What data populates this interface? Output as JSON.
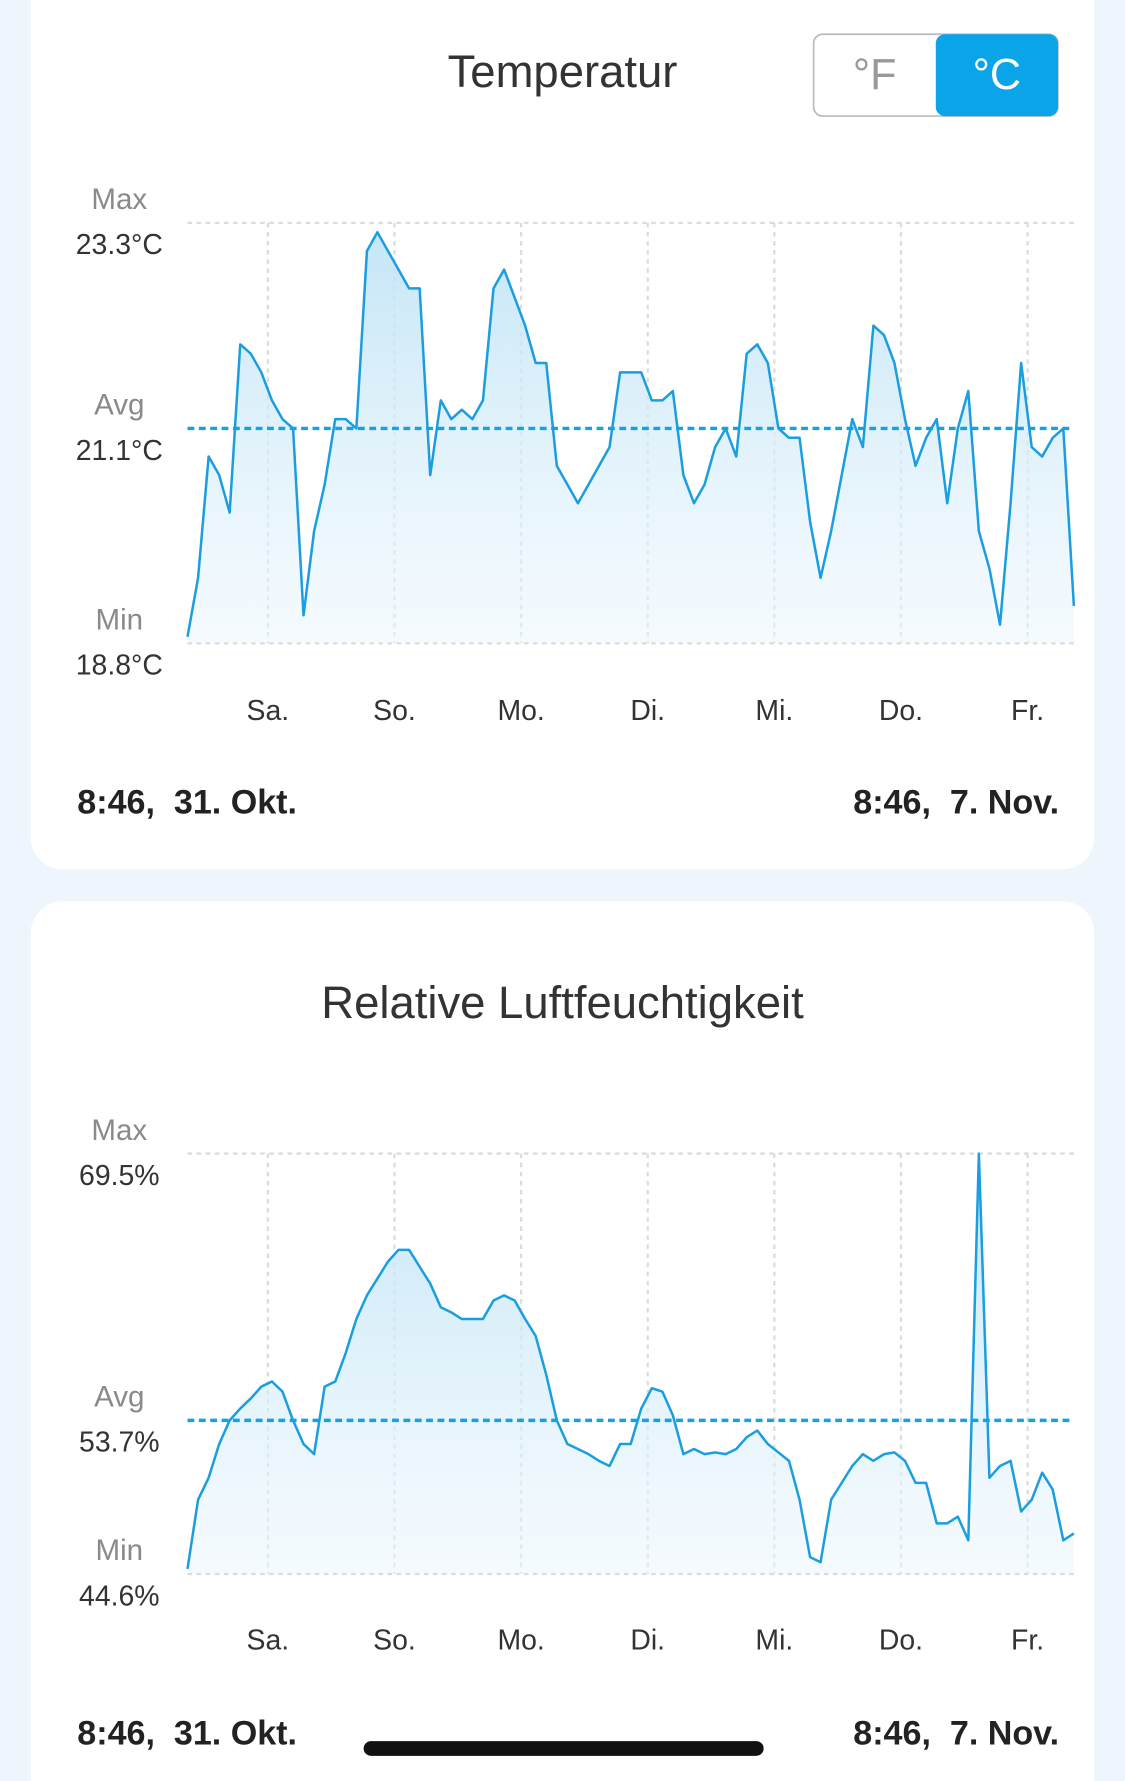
{
  "unit_toggle": {
    "options": [
      "°F",
      "°C"
    ],
    "selected": "°C"
  },
  "chart_data": [
    {
      "type": "line",
      "title": "Temperatur",
      "color": "#1a9ee0",
      "values": [
        18.87,
        19.5,
        20.8,
        20.6,
        20.2,
        22.0,
        21.9,
        21.7,
        21.4,
        21.2,
        21.1,
        19.1,
        20.0,
        20.5,
        21.2,
        21.2,
        21.1,
        23.0,
        23.2,
        23.0,
        22.8,
        22.6,
        22.6,
        20.6,
        21.4,
        21.2,
        21.3,
        21.2,
        21.4,
        22.6,
        22.8,
        22.5,
        22.2,
        21.8,
        21.8,
        20.7,
        20.5,
        20.3,
        20.5,
        20.7,
        20.9,
        21.7,
        21.7,
        21.7,
        21.4,
        21.4,
        21.5,
        20.6,
        20.3,
        20.5,
        20.9,
        21.1,
        20.8,
        21.9,
        22.0,
        21.8,
        21.1,
        21.0,
        21.0,
        20.1,
        19.5,
        20.0,
        20.6,
        21.2,
        20.9,
        22.2,
        22.1,
        21.8,
        21.2,
        20.7,
        21.0,
        21.2,
        20.3,
        21.1,
        21.5,
        20.0,
        19.6,
        19.0,
        20.3,
        21.8,
        20.9,
        20.8,
        21.0,
        21.1,
        19.2
      ],
      "ylim": [
        18.8,
        23.3
      ],
      "yticks": [
        {
          "value": 18.8,
          "label": "18.8°C"
        },
        {
          "value": 21.1,
          "label": "21.1°C"
        },
        {
          "value": 23.3,
          "label": "23.3°C"
        }
      ],
      "ytick_names": [
        "Min",
        "Avg",
        "Max"
      ],
      "day_labels": [
        "Sa.",
        "So.",
        "Mo.",
        "Di.",
        "Mi.",
        "Do.",
        "Fr."
      ],
      "range_start": "8:46,  31. Okt.",
      "range_end": "8:46,  7. Nov."
    },
    {
      "type": "line",
      "title": "Relative Luftfeuchtigkeit",
      "color": "#1a9ee0",
      "values": [
        44.9,
        49.0,
        50.3,
        52.3,
        53.7,
        54.4,
        55.0,
        55.7,
        56.0,
        55.4,
        53.7,
        52.3,
        51.7,
        55.7,
        56.0,
        57.7,
        59.7,
        61.1,
        62.1,
        63.1,
        63.8,
        63.8,
        62.8,
        61.8,
        60.4,
        60.1,
        59.7,
        59.7,
        59.7,
        60.8,
        61.1,
        60.8,
        59.7,
        58.7,
        56.4,
        53.7,
        52.3,
        52.0,
        51.7,
        51.3,
        51.0,
        52.3,
        52.3,
        54.4,
        55.6,
        55.4,
        54.0,
        51.7,
        52.0,
        51.7,
        51.8,
        51.7,
        52.0,
        52.7,
        53.1,
        52.3,
        51.8,
        51.3,
        49.0,
        45.6,
        45.3,
        49.0,
        50.0,
        51.0,
        51.7,
        51.3,
        51.7,
        51.8,
        51.3,
        50.0,
        50.0,
        47.6,
        47.6,
        48.0,
        46.6,
        69.5,
        50.3,
        51.0,
        51.3,
        48.3,
        49.0,
        50.6,
        49.6,
        46.6,
        47.0
      ],
      "ylim": [
        44.6,
        69.5
      ],
      "yticks": [
        {
          "value": 44.6,
          "label": "44.6%"
        },
        {
          "value": 53.7,
          "label": "53.7%"
        },
        {
          "value": 69.5,
          "label": "69.5%"
        }
      ],
      "ytick_names": [
        "Min",
        "Avg",
        "Max"
      ],
      "day_labels": [
        "Sa.",
        "So.",
        "Mo.",
        "Di.",
        "Mi.",
        "Do.",
        "Fr."
      ],
      "range_start": "8:46,  31. Okt.",
      "range_end": "8:46,  7. Nov."
    }
  ]
}
